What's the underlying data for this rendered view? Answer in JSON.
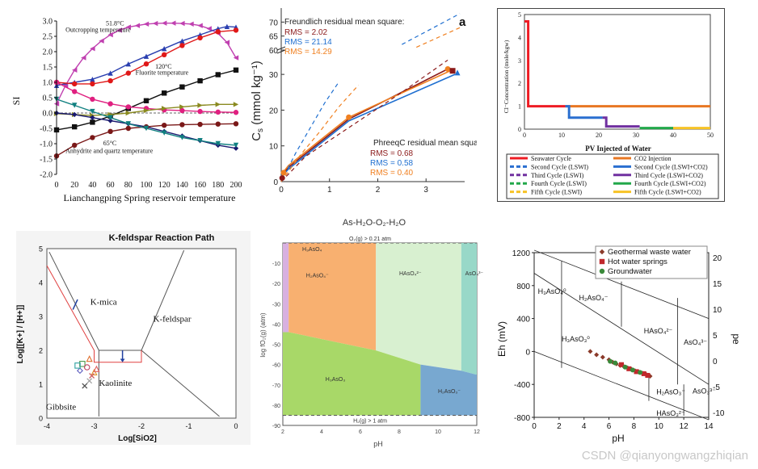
{
  "watermark": "CSDN @qianyongwangzhiqian",
  "chart_data": [
    {
      "type": "line",
      "id": "si",
      "xlabel": "Lianchangping Spring reservoir temperature",
      "ylabel": "SI",
      "xlim": [
        0,
        200
      ],
      "ylim": [
        -2.0,
        3.0
      ],
      "xticks": [
        0,
        20,
        40,
        60,
        80,
        100,
        120,
        140,
        160,
        180,
        200
      ],
      "yticks": [
        "-2.0",
        "-1.5",
        "-1.0",
        "-0.5",
        "0.0",
        "0.5",
        "1.0",
        "1.5",
        "2.0",
        "2.5",
        "3.0"
      ],
      "annotations": [
        {
          "text": "51.8°C",
          "x": 55,
          "y": 2.85
        },
        {
          "text": "Outcropping temperature",
          "x": 10,
          "y": 2.65
        },
        {
          "text": "120°C",
          "x": 110,
          "y": 1.45
        },
        {
          "text": "Fluorite temperature",
          "x": 88,
          "y": 1.25
        },
        {
          "text": "65°C",
          "x": 52,
          "y": -1.05
        },
        {
          "text": "Anhydrite and quartz temperature",
          "x": 10,
          "y": -1.3
        }
      ],
      "series": [
        {
          "name": "magenta",
          "color": "#c040b0",
          "marker": "tri-left",
          "x": [
            0,
            10,
            20,
            30,
            40,
            50,
            60,
            70,
            80,
            90,
            100,
            110,
            120,
            130,
            140,
            150,
            160,
            170,
            180,
            190,
            200
          ],
          "y": [
            0.3,
            0.9,
            1.4,
            1.8,
            2.1,
            2.35,
            2.55,
            2.7,
            2.8,
            2.85,
            2.9,
            2.92,
            2.93,
            2.93,
            2.92,
            2.9,
            2.85,
            2.75,
            2.6,
            2.3,
            1.8
          ]
        },
        {
          "name": "blue-up",
          "color": "#2a3fb0",
          "marker": "tri-up",
          "x": [
            0,
            20,
            40,
            60,
            80,
            100,
            120,
            140,
            160,
            180,
            190,
            200
          ],
          "y": [
            0.9,
            1.0,
            1.1,
            1.3,
            1.6,
            1.85,
            2.1,
            2.35,
            2.55,
            2.75,
            2.82,
            2.8
          ]
        },
        {
          "name": "red",
          "color": "#e01818",
          "marker": "circle",
          "x": [
            0,
            20,
            40,
            60,
            80,
            100,
            120,
            140,
            160,
            180,
            200
          ],
          "y": [
            1.0,
            0.95,
            0.95,
            1.05,
            1.3,
            1.6,
            1.9,
            2.2,
            2.45,
            2.65,
            2.7
          ]
        },
        {
          "name": "black",
          "color": "#111111",
          "marker": "square",
          "x": [
            0,
            20,
            40,
            60,
            80,
            100,
            120,
            140,
            160,
            180,
            200
          ],
          "y": [
            -0.55,
            -0.45,
            -0.3,
            -0.1,
            0.15,
            0.4,
            0.65,
            0.85,
            1.05,
            1.25,
            1.4
          ]
        },
        {
          "name": "pink",
          "color": "#e02080",
          "marker": "circle",
          "x": [
            0,
            20,
            40,
            60,
            80,
            100,
            120,
            140,
            160,
            180,
            200
          ],
          "y": [
            1.0,
            0.7,
            0.45,
            0.3,
            0.2,
            0.15,
            0.1,
            0.08,
            0.05,
            0.03,
            0.02
          ]
        },
        {
          "name": "olive",
          "color": "#8a8a20",
          "marker": "tri-right",
          "x": [
            0,
            20,
            40,
            60,
            80,
            100,
            120,
            140,
            160,
            180,
            200
          ],
          "y": [
            -0.02,
            -0.05,
            -0.08,
            -0.05,
            0.0,
            0.08,
            0.15,
            0.2,
            0.25,
            0.28,
            0.28
          ]
        },
        {
          "name": "navy",
          "color": "#1a1a70",
          "marker": "diamond",
          "x": [
            0,
            20,
            40,
            60,
            80,
            100,
            120,
            140,
            160,
            180,
            200
          ],
          "y": [
            0.0,
            -0.05,
            -0.15,
            -0.25,
            -0.35,
            -0.45,
            -0.6,
            -0.75,
            -0.9,
            -1.05,
            -1.15
          ]
        },
        {
          "name": "maroon",
          "color": "#7a1818",
          "marker": "circle",
          "x": [
            0,
            20,
            40,
            60,
            80,
            100,
            120,
            140,
            160,
            180,
            200
          ],
          "y": [
            -1.4,
            -1.05,
            -0.8,
            -0.6,
            -0.5,
            -0.45,
            -0.4,
            -0.38,
            -0.37,
            -0.36,
            -0.35
          ]
        },
        {
          "name": "teal",
          "color": "#108080",
          "marker": "tri-down",
          "x": [
            0,
            20,
            40,
            60,
            80,
            100,
            120,
            140,
            160,
            180,
            200
          ],
          "y": [
            0.45,
            0.25,
            0.05,
            -0.15,
            -0.35,
            -0.5,
            -0.65,
            -0.8,
            -0.9,
            -1.0,
            -1.05
          ]
        }
      ]
    },
    {
      "type": "line",
      "id": "cs",
      "panel_label": "a",
      "ylabel": "C",
      "ylabel_sub": "s",
      "ylabel_units": " (mmol kg⁻¹)",
      "xlim": [
        0,
        3.8
      ],
      "ylim_lower": [
        0,
        35
      ],
      "ylim_upper": [
        60,
        75
      ],
      "xticks": [
        "0",
        "1",
        "2",
        "3"
      ],
      "yticks_lower": [
        "0",
        "10",
        "20",
        "30"
      ],
      "yticks_upper": [
        "60",
        "65",
        "70"
      ],
      "freundlich_title": "Freundlich residual mean square:",
      "freundlich_rms": [
        {
          "label": "RMS =   2.02",
          "color": "#8b1a1a"
        },
        {
          "label": "RMS = 21.14",
          "color": "#1f6fd0"
        },
        {
          "label": "RMS = 14.29",
          "color": "#f08020"
        }
      ],
      "phreeqc_title": "PhreeqC residual mean square:",
      "phreeqc_rms": [
        {
          "label": "RMS = 0.68",
          "color": "#8b1a1a"
        },
        {
          "label": "RMS = 0.58",
          "color": "#1f6fd0"
        },
        {
          "label": "RMS = 0.40",
          "color": "#f08020"
        }
      ],
      "series": [
        {
          "name": "dark-red-solid",
          "color": "#8b1a1a",
          "x": [
            0,
            0.05,
            0.15,
            1.4,
            3.45
          ],
          "y": [
            0,
            2.5,
            4,
            17.5,
            31.5
          ]
        },
        {
          "name": "blue-solid",
          "color": "#1f6fd0",
          "x": [
            0,
            0.05,
            0.15,
            1.4,
            3.6
          ],
          "y": [
            0,
            2,
            3.5,
            17,
            30
          ]
        },
        {
          "name": "orange-solid",
          "color": "#f08020",
          "x": [
            0,
            0.05,
            0.15,
            1.4,
            3.5
          ],
          "y": [
            0,
            2.8,
            4.5,
            18,
            31
          ]
        },
        {
          "name": "dark-red-dash",
          "color": "#8b1a1a",
          "x": [
            0,
            0.5,
            1.5,
            2.5,
            3.45
          ],
          "y": [
            0,
            7,
            16,
            25,
            34
          ]
        },
        {
          "name": "blue-dash",
          "color": "#1f6fd0",
          "x": [
            0,
            0.3,
            0.6,
            0.9,
            1.2
          ],
          "y": [
            0,
            8,
            15,
            22,
            28
          ]
        },
        {
          "name": "orange-dash",
          "color": "#f08020",
          "x": [
            0,
            0.4,
            0.8,
            1.2,
            1.6
          ],
          "y": [
            0,
            7.5,
            14,
            21,
            27
          ]
        }
      ],
      "points": [
        {
          "x": 1.4,
          "y": 18,
          "color": "#f08020",
          "shape": "circle"
        },
        {
          "x": 3.45,
          "y": 31.5,
          "color": "#f08020",
          "shape": "circle"
        },
        {
          "x": 3.55,
          "y": 31,
          "color": "#8b1a1a",
          "shape": "square"
        },
        {
          "x": 3.65,
          "y": 30.5,
          "color": "#1f6fd0",
          "shape": "triangle"
        },
        {
          "x": 0.02,
          "y": 1,
          "color": "#8b1a1a",
          "shape": "circle"
        },
        {
          "x": 0.05,
          "y": 2.5,
          "color": "#f08020",
          "shape": "circle"
        }
      ]
    },
    {
      "type": "line",
      "id": "cl",
      "xlabel": "PV Injected of Water",
      "ylabel": "Cl⁻Concentration (mole/kgw)",
      "xlim": [
        0,
        50
      ],
      "ylim": [
        0,
        5
      ],
      "xticks": [
        "0",
        "10",
        "20",
        "30",
        "40",
        "50"
      ],
      "yticks": [
        "0",
        "1",
        "2",
        "3",
        "4",
        "5"
      ],
      "legend": [
        {
          "label": "Seawater Cycle",
          "color": "#ee1c24",
          "style": "solid"
        },
        {
          "label": "CO2 Injection",
          "color": "#e87722",
          "style": "solid"
        },
        {
          "label": "Second Cycle (LSWI)",
          "color": "#2a6fd0",
          "style": "dash"
        },
        {
          "label": "Second Cycle (LSWI+CO2)",
          "color": "#2a6fd0",
          "style": "solid"
        },
        {
          "label": "Third Cycle (LSWI)",
          "color": "#7030a0",
          "style": "dash"
        },
        {
          "label": "Third Cycle (LSWI+CO2)",
          "color": "#7030a0",
          "style": "solid"
        },
        {
          "label": "Fourth Cycle (LSWI)",
          "color": "#22a84a",
          "style": "dash"
        },
        {
          "label": "Fourth Cycle (LSWI+CO2)",
          "color": "#22a84a",
          "style": "solid"
        },
        {
          "label": "Fifth Cycle (LSWI)",
          "color": "#f7c325",
          "style": "dash"
        },
        {
          "label": "Fifth Cycle (LSWI+CO2)",
          "color": "#f7c325",
          "style": "solid"
        }
      ],
      "series": [
        {
          "name": "Seawater",
          "color": "#ee1c24",
          "x": [
            0,
            0.5,
            0.5,
            1,
            1,
            11
          ],
          "y": [
            4.7,
            4.7,
            4.7,
            4.7,
            1,
            1
          ]
        },
        {
          "name": "CO2",
          "color": "#e87722",
          "x": [
            11,
            50
          ],
          "y": [
            1,
            1
          ]
        },
        {
          "name": "Second",
          "color": "#2a6fd0",
          "x": [
            11,
            12,
            12,
            21
          ],
          "y": [
            1,
            1,
            0.5,
            0.5
          ]
        },
        {
          "name": "Third",
          "color": "#7030a0",
          "x": [
            21,
            22,
            22,
            31
          ],
          "y": [
            0.5,
            0.5,
            0.12,
            0.12
          ]
        },
        {
          "name": "Fourth",
          "color": "#22a84a",
          "x": [
            31,
            40
          ],
          "y": [
            0.05,
            0.05
          ]
        },
        {
          "name": "Fifth",
          "color": "#f7c325",
          "x": [
            40,
            50
          ],
          "y": [
            0.05,
            0.05
          ]
        }
      ]
    },
    {
      "type": "scatter",
      "id": "kfeld",
      "title": "K-feldspar Reaction Path",
      "xlabel": "Log[SiO2]",
      "ylabel": "Log[[K+] / [H+]]",
      "xlim": [
        -4,
        0
      ],
      "ylim": [
        0,
        5
      ],
      "xticks": [
        "-4",
        "-3",
        "-2",
        "-1",
        "0"
      ],
      "yticks": [
        "0",
        "1",
        "2",
        "3",
        "4",
        "5"
      ],
      "regions": [
        "K-mica",
        "K-feldspar",
        "Kaolinite",
        "Gibbsite"
      ],
      "points": [
        {
          "x": -3.1,
          "y": 1.75,
          "color": "#e07030",
          "shape": "triangle"
        },
        {
          "x": -3.25,
          "y": 1.6,
          "color": "#4a9a4a",
          "shape": "square"
        },
        {
          "x": -3.15,
          "y": 1.5,
          "color": "#c04060",
          "shape": "circle"
        },
        {
          "x": -3.3,
          "y": 1.4,
          "color": "#6060c0",
          "shape": "diamond"
        },
        {
          "x": -3.0,
          "y": 1.35,
          "color": "#e09020",
          "shape": "triangle"
        },
        {
          "x": -2.95,
          "y": 1.45,
          "color": "#e06060",
          "shape": "triangle"
        },
        {
          "x": -3.05,
          "y": 1.25,
          "color": "#d06060",
          "shape": "x"
        },
        {
          "x": -3.2,
          "y": 0.95,
          "color": "#505050",
          "shape": "x"
        },
        {
          "x": -3.1,
          "y": 1.1,
          "color": "#a0a0a0",
          "shape": "x"
        },
        {
          "x": -3.35,
          "y": 1.55,
          "color": "#30a0a0",
          "shape": "square"
        }
      ]
    },
    {
      "type": "area",
      "id": "as",
      "title": "As-H₂O-O₂-H₂O",
      "xlabel": "pH",
      "ylabel": "log fO₂(g) (atm)",
      "xlim": [
        2,
        12
      ],
      "ylim": [
        -90,
        0
      ],
      "xticks": [
        "2",
        "4",
        "6",
        "8",
        "10",
        "12"
      ],
      "yticks": [
        "-10",
        "-20",
        "-30",
        "-40",
        "-50",
        "-60",
        "-70",
        "-80",
        "-90"
      ],
      "top_label": "O₂(g) > 0.21 atm",
      "bottom_label": "H₂(g) > 1 atm",
      "regions": [
        {
          "label": "H₃AsO₄",
          "color": "#d8b0e0"
        },
        {
          "label": "H₂AsO₄⁻",
          "color": "#f8b070"
        },
        {
          "label": "HAsO₄²⁻",
          "color": "#d8f0d0"
        },
        {
          "label": "AsO₄³⁻",
          "color": "#98d8c8"
        },
        {
          "label": "H₃AsO₃",
          "color": "#a8d868"
        },
        {
          "label": "H₂AsO₃⁻",
          "color": "#78a8d0"
        }
      ]
    },
    {
      "type": "scatter",
      "id": "eh",
      "xlabel": "pH",
      "ylabel": "Eh (mV)",
      "ylabel_right": "pe",
      "xlim": [
        0,
        14
      ],
      "ylim": [
        -800,
        1200
      ],
      "xticks": [
        "0",
        "2",
        "4",
        "6",
        "8",
        "10",
        "12",
        "14"
      ],
      "yticks": [
        "-800",
        "-400",
        "0",
        "400",
        "800",
        "1200"
      ],
      "yticks_right": [
        "-10",
        "-5",
        "0",
        "5",
        "10",
        "15",
        "20"
      ],
      "legend": [
        {
          "label": "Geothermal waste water",
          "color": "#8b3a2a",
          "shape": "diamond"
        },
        {
          "label": "Hot water springs",
          "color": "#c0282c",
          "shape": "square"
        },
        {
          "label": "Groundwater",
          "color": "#3a8a3a",
          "shape": "circle"
        }
      ],
      "regions": [
        "H₃AsO₄⁰",
        "H₂AsO₄⁻",
        "HAsO₄²⁻",
        "AsO₄³⁻",
        "H₃AsO₃⁰",
        "H₂AsO₃⁻",
        "AsO₃³⁻",
        "HAsO₃²⁻"
      ],
      "points": [
        {
          "x": 4.5,
          "y": 0,
          "s": "g"
        },
        {
          "x": 5.0,
          "y": -40,
          "s": "g"
        },
        {
          "x": 5.5,
          "y": -70,
          "s": "g"
        },
        {
          "x": 6.0,
          "y": -100,
          "s": "g"
        },
        {
          "x": 6.3,
          "y": -130,
          "s": "g"
        },
        {
          "x": 6.6,
          "y": -150,
          "s": "g"
        },
        {
          "x": 6.9,
          "y": -170,
          "s": "g"
        },
        {
          "x": 7.2,
          "y": -185,
          "s": "g"
        },
        {
          "x": 7.5,
          "y": -200,
          "s": "g"
        },
        {
          "x": 7.8,
          "y": -215,
          "s": "g"
        },
        {
          "x": 8.1,
          "y": -235,
          "s": "g"
        },
        {
          "x": 8.4,
          "y": -250,
          "s": "g"
        },
        {
          "x": 8.7,
          "y": -265,
          "s": "g"
        },
        {
          "x": 9.0,
          "y": -280,
          "s": "g"
        },
        {
          "x": 9.3,
          "y": -300,
          "s": "g"
        },
        {
          "x": 7.0,
          "y": -160,
          "s": "h"
        },
        {
          "x": 7.6,
          "y": -210,
          "s": "h"
        },
        {
          "x": 8.2,
          "y": -245,
          "s": "h"
        },
        {
          "x": 8.8,
          "y": -270,
          "s": "h"
        },
        {
          "x": 9.1,
          "y": -290,
          "s": "h"
        },
        {
          "x": 6.5,
          "y": -140,
          "s": "w"
        },
        {
          "x": 7.3,
          "y": -190,
          "s": "w"
        },
        {
          "x": 7.9,
          "y": -225,
          "s": "w"
        },
        {
          "x": 8.5,
          "y": -255,
          "s": "w"
        },
        {
          "x": 6.1,
          "y": -120,
          "s": "w"
        }
      ]
    }
  ]
}
